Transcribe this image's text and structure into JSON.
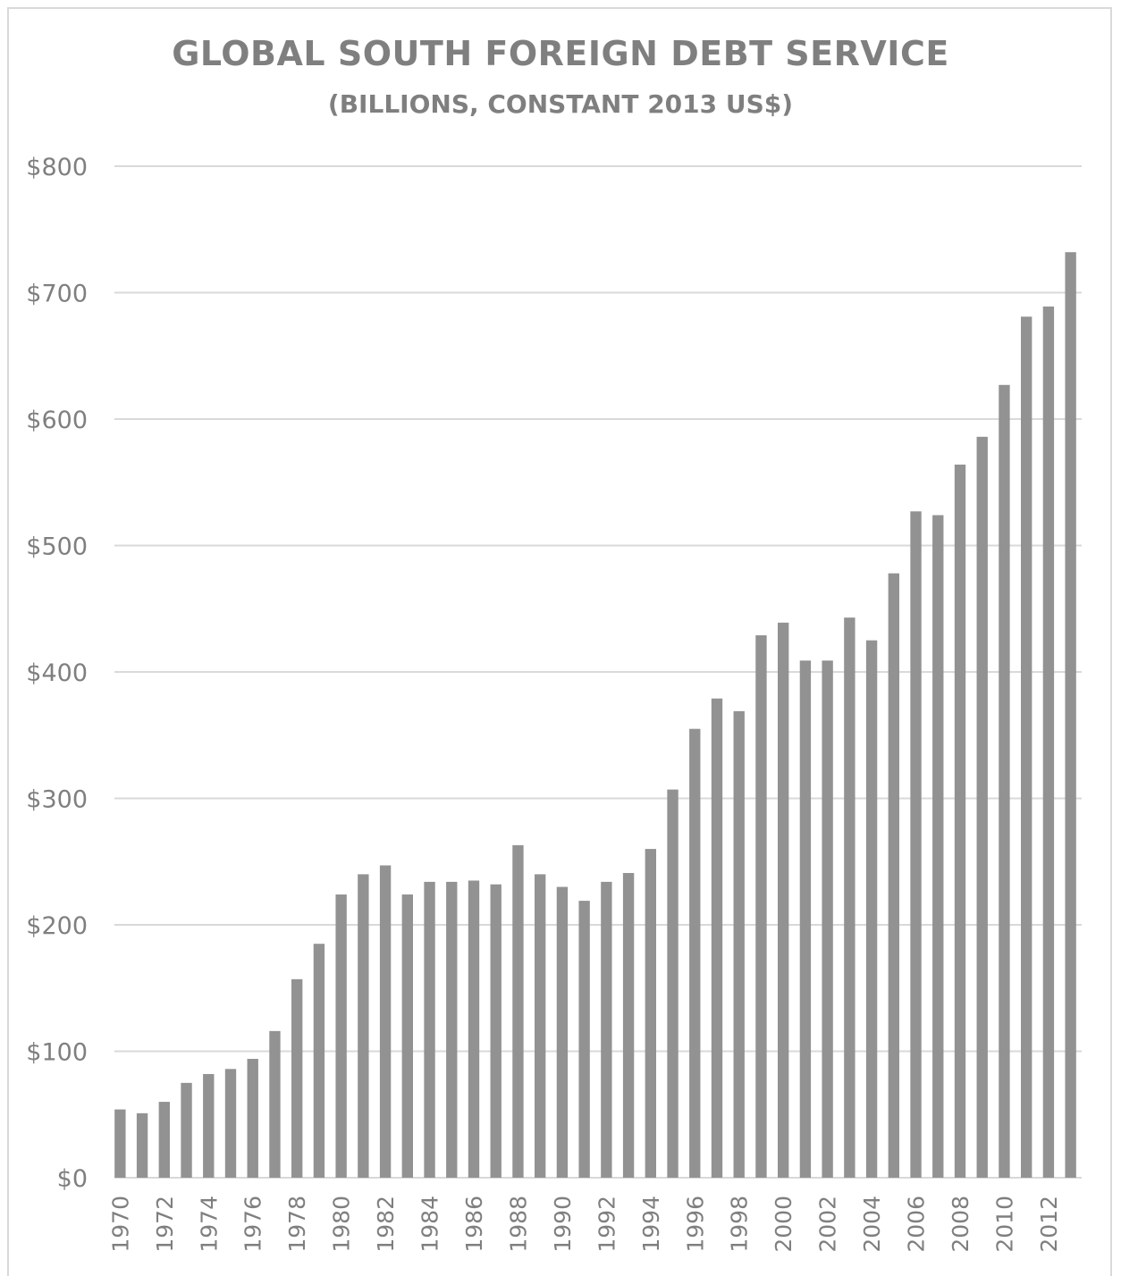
{
  "chart_data": {
    "type": "bar",
    "title": "GLOBAL SOUTH FOREIGN DEBT SERVICE",
    "subtitle": "(BILLIONS, CONSTANT 2013 US$)",
    "xlabel": "",
    "ylabel": "",
    "ylim": [
      0,
      800
    ],
    "yticks": [
      0,
      100,
      200,
      300,
      400,
      500,
      600,
      700,
      800
    ],
    "ytick_labels": [
      "$0",
      "$100",
      "$200",
      "$300",
      "$400",
      "$500",
      "$600",
      "$700",
      "$800"
    ],
    "categories": [
      "1970",
      "1971",
      "1972",
      "1973",
      "1974",
      "1975",
      "1976",
      "1977",
      "1978",
      "1979",
      "1980",
      "1981",
      "1982",
      "1983",
      "1984",
      "1985",
      "1986",
      "1987",
      "1988",
      "1989",
      "1990",
      "1991",
      "1992",
      "1993",
      "1994",
      "1995",
      "1996",
      "1997",
      "1998",
      "1999",
      "2000",
      "2001",
      "2002",
      "2003",
      "2004",
      "2005",
      "2006",
      "2007",
      "2008",
      "2009",
      "2010",
      "2011",
      "2012",
      "2013"
    ],
    "xtick_labels": [
      "1970",
      "1972",
      "1974",
      "1976",
      "1978",
      "1980",
      "1982",
      "1984",
      "1986",
      "1988",
      "1990",
      "1992",
      "1994",
      "1996",
      "1998",
      "2000",
      "2002",
      "2004",
      "2006",
      "2008",
      "2010",
      "2012"
    ],
    "values": [
      54,
      51,
      60,
      75,
      82,
      86,
      94,
      116,
      157,
      185,
      224,
      240,
      247,
      224,
      234,
      234,
      235,
      232,
      263,
      240,
      230,
      219,
      234,
      241,
      260,
      307,
      355,
      379,
      369,
      429,
      439,
      409,
      409,
      443,
      425,
      478,
      527,
      524,
      564,
      586,
      627,
      681,
      689,
      732
    ],
    "grid": true,
    "legend": "none",
    "bar_color": "#929292",
    "grid_color": "#d9d9d9",
    "text_color": "#7f7f7f"
  }
}
